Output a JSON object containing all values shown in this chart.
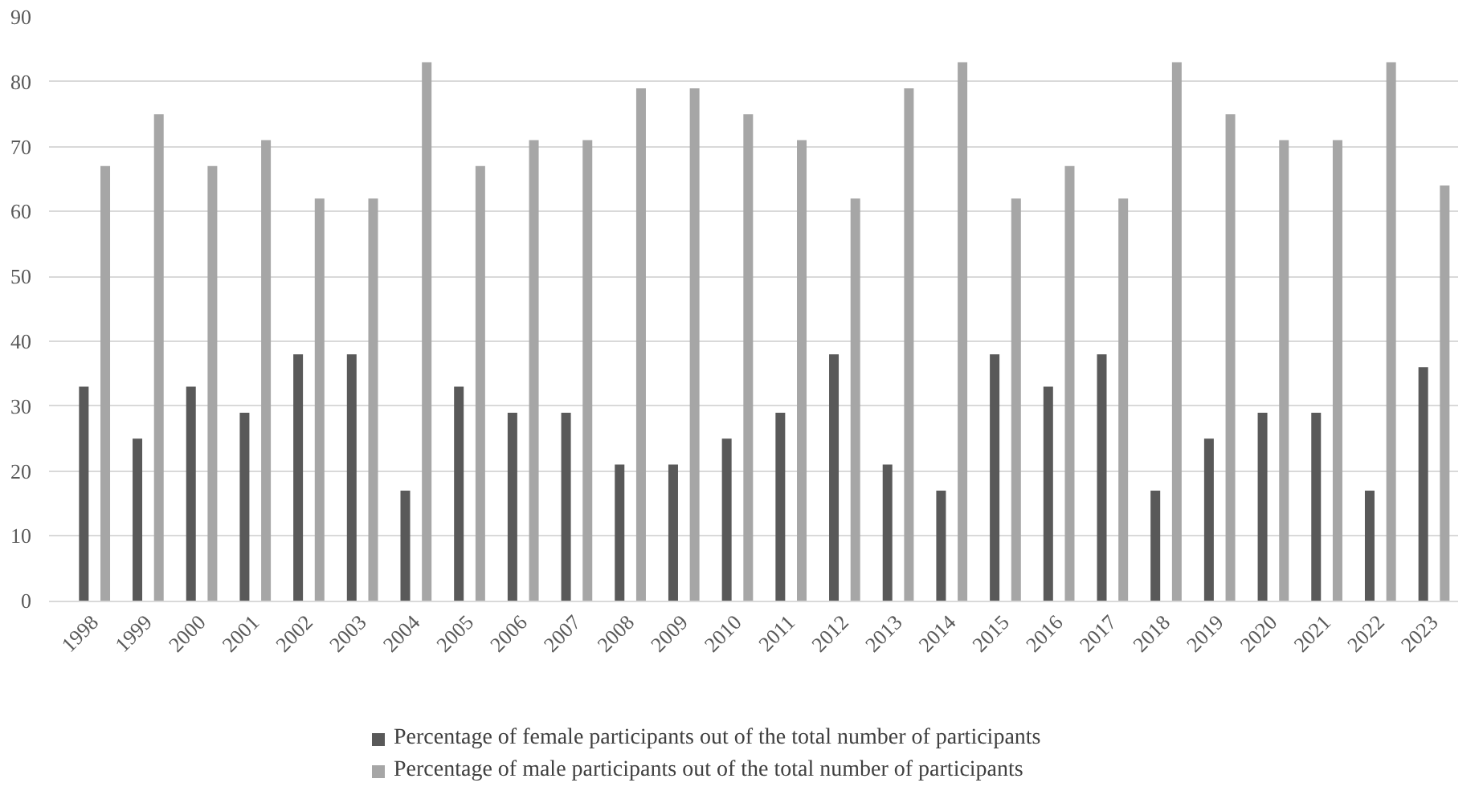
{
  "chart_data": {
    "type": "bar",
    "categories": [
      "1998",
      "1999",
      "2000",
      "2001",
      "2002",
      "2003",
      "2004",
      "2005",
      "2006",
      "2007",
      "2008",
      "2009",
      "2010",
      "2011",
      "2012",
      "2013",
      "2014",
      "2015",
      "2016",
      "2017",
      "2018",
      "2019",
      "2020",
      "2021",
      "2022",
      "2023"
    ],
    "series": [
      {
        "name": "Percentage of female participants out of the total number of participants",
        "color": "#595959",
        "values": [
          33,
          25,
          33,
          29,
          38,
          38,
          17,
          33,
          29,
          29,
          21,
          21,
          25,
          29,
          38,
          21,
          17,
          38,
          33,
          38,
          17,
          25,
          29,
          29,
          17,
          36
        ]
      },
      {
        "name": "Percentage of male participants out of the total number of participants",
        "color": "#a6a6a6",
        "values": [
          67,
          75,
          67,
          71,
          62,
          62,
          83,
          67,
          71,
          71,
          79,
          79,
          75,
          71,
          62,
          79,
          83,
          62,
          67,
          62,
          83,
          75,
          71,
          71,
          83,
          64
        ]
      }
    ],
    "ylim": [
      0,
      90
    ],
    "yticks": [
      0,
      10,
      20,
      30,
      40,
      50,
      60,
      70,
      80,
      90
    ],
    "grid": "y",
    "legend": "bottom"
  }
}
